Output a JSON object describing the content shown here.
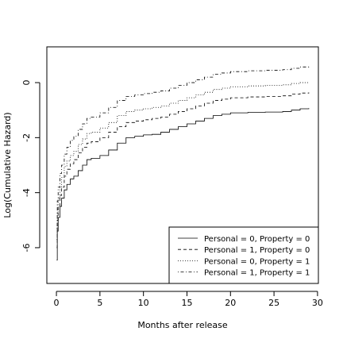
{
  "chart_data": {
    "type": "line",
    "title": "",
    "xlabel": "Months after release",
    "ylabel": "Log(Cumulative Hazard)",
    "xlim": [
      -1.1,
      30.1
    ],
    "ylim": [
      -7.3,
      1.3
    ],
    "xticks": [
      0,
      5,
      10,
      15,
      20,
      25,
      30
    ],
    "yticks": [
      -6,
      -4,
      -2,
      0
    ],
    "grid": false,
    "legend_position": "bottom-right",
    "series": [
      {
        "name": "Personal = 0, Property = 0",
        "line_style": "solid",
        "points": [
          [
            0.03,
            -6.45
          ],
          [
            0.1,
            -5.4
          ],
          [
            0.2,
            -4.9
          ],
          [
            0.4,
            -4.5
          ],
          [
            0.6,
            -4.2
          ],
          [
            0.9,
            -3.9
          ],
          [
            1.2,
            -3.7
          ],
          [
            1.6,
            -3.5
          ],
          [
            2.0,
            -3.4
          ],
          [
            2.5,
            -3.2
          ],
          [
            3.0,
            -3.0
          ],
          [
            3.5,
            -2.8
          ],
          [
            4.0,
            -2.75
          ],
          [
            5.0,
            -2.65
          ],
          [
            6.0,
            -2.45
          ],
          [
            7.0,
            -2.2
          ],
          [
            8.0,
            -2.0
          ],
          [
            9.0,
            -1.95
          ],
          [
            10.0,
            -1.9
          ],
          [
            11.0,
            -1.88
          ],
          [
            12.0,
            -1.8
          ],
          [
            13.0,
            -1.7
          ],
          [
            14.0,
            -1.6
          ],
          [
            15.0,
            -1.5
          ],
          [
            16.0,
            -1.4
          ],
          [
            17.0,
            -1.3
          ],
          [
            18.0,
            -1.2
          ],
          [
            19.0,
            -1.15
          ],
          [
            20.0,
            -1.1
          ],
          [
            22.0,
            -1.08
          ],
          [
            24.0,
            -1.07
          ],
          [
            26.0,
            -1.05
          ],
          [
            27.0,
            -1.0
          ],
          [
            28.0,
            -0.95
          ],
          [
            29.0,
            -0.93
          ]
        ]
      },
      {
        "name": "Personal = 1, Property = 0",
        "line_style": "dashed",
        "points": [
          [
            0.03,
            -6.0
          ],
          [
            0.1,
            -5.0
          ],
          [
            0.2,
            -4.5
          ],
          [
            0.4,
            -4.1
          ],
          [
            0.6,
            -3.8
          ],
          [
            0.9,
            -3.4
          ],
          [
            1.2,
            -3.15
          ],
          [
            1.6,
            -2.95
          ],
          [
            2.0,
            -2.8
          ],
          [
            2.5,
            -2.55
          ],
          [
            3.0,
            -2.35
          ],
          [
            3.5,
            -2.2
          ],
          [
            4.0,
            -2.15
          ],
          [
            5.0,
            -2.0
          ],
          [
            6.0,
            -1.8
          ],
          [
            7.0,
            -1.6
          ],
          [
            8.0,
            -1.45
          ],
          [
            9.0,
            -1.4
          ],
          [
            10.0,
            -1.35
          ],
          [
            11.0,
            -1.3
          ],
          [
            12.0,
            -1.25
          ],
          [
            13.0,
            -1.15
          ],
          [
            14.0,
            -1.05
          ],
          [
            15.0,
            -0.95
          ],
          [
            16.0,
            -0.85
          ],
          [
            17.0,
            -0.75
          ],
          [
            18.0,
            -0.65
          ],
          [
            19.0,
            -0.6
          ],
          [
            20.0,
            -0.55
          ],
          [
            22.0,
            -0.52
          ],
          [
            24.0,
            -0.5
          ],
          [
            26.0,
            -0.48
          ],
          [
            27.0,
            -0.42
          ],
          [
            28.0,
            -0.38
          ],
          [
            29.0,
            -0.36
          ]
        ]
      },
      {
        "name": "Personal = 0, Property = 1",
        "line_style": "dotted",
        "points": [
          [
            0.03,
            -5.7
          ],
          [
            0.1,
            -4.7
          ],
          [
            0.2,
            -4.2
          ],
          [
            0.4,
            -3.8
          ],
          [
            0.6,
            -3.45
          ],
          [
            0.9,
            -3.05
          ],
          [
            1.2,
            -2.85
          ],
          [
            1.6,
            -2.65
          ],
          [
            2.0,
            -2.5
          ],
          [
            2.5,
            -2.25
          ],
          [
            3.0,
            -2.05
          ],
          [
            3.5,
            -1.85
          ],
          [
            4.0,
            -1.8
          ],
          [
            5.0,
            -1.65
          ],
          [
            6.0,
            -1.45
          ],
          [
            7.0,
            -1.2
          ],
          [
            8.0,
            -1.05
          ],
          [
            9.0,
            -1.0
          ],
          [
            10.0,
            -0.95
          ],
          [
            11.0,
            -0.9
          ],
          [
            12.0,
            -0.85
          ],
          [
            13.0,
            -0.75
          ],
          [
            14.0,
            -0.65
          ],
          [
            15.0,
            -0.55
          ],
          [
            16.0,
            -0.45
          ],
          [
            17.0,
            -0.35
          ],
          [
            18.0,
            -0.25
          ],
          [
            19.0,
            -0.2
          ],
          [
            20.0,
            -0.15
          ],
          [
            22.0,
            -0.12
          ],
          [
            24.0,
            -0.1
          ],
          [
            26.0,
            -0.08
          ],
          [
            27.0,
            -0.03
          ],
          [
            28.0,
            0.0
          ],
          [
            29.0,
            0.0
          ]
        ]
      },
      {
        "name": "Personal = 1, Property = 1",
        "line_style": "dotdash",
        "points": [
          [
            0.03,
            -5.3
          ],
          [
            0.1,
            -4.3
          ],
          [
            0.2,
            -3.8
          ],
          [
            0.4,
            -3.3
          ],
          [
            0.6,
            -3.0
          ],
          [
            0.9,
            -2.6
          ],
          [
            1.2,
            -2.35
          ],
          [
            1.6,
            -2.1
          ],
          [
            2.0,
            -1.95
          ],
          [
            2.5,
            -1.7
          ],
          [
            3.0,
            -1.5
          ],
          [
            3.5,
            -1.3
          ],
          [
            4.0,
            -1.25
          ],
          [
            5.0,
            -1.1
          ],
          [
            6.0,
            -0.9
          ],
          [
            7.0,
            -0.65
          ],
          [
            8.0,
            -0.5
          ],
          [
            9.0,
            -0.45
          ],
          [
            10.0,
            -0.4
          ],
          [
            11.0,
            -0.35
          ],
          [
            12.0,
            -0.3
          ],
          [
            13.0,
            -0.2
          ],
          [
            14.0,
            -0.1
          ],
          [
            15.0,
            0.0
          ],
          [
            16.0,
            0.1
          ],
          [
            17.0,
            0.2
          ],
          [
            18.0,
            0.3
          ],
          [
            19.0,
            0.35
          ],
          [
            20.0,
            0.4
          ],
          [
            22.0,
            0.43
          ],
          [
            24.0,
            0.45
          ],
          [
            26.0,
            0.47
          ],
          [
            27.0,
            0.52
          ],
          [
            28.0,
            0.57
          ],
          [
            29.0,
            0.59
          ]
        ]
      }
    ]
  }
}
